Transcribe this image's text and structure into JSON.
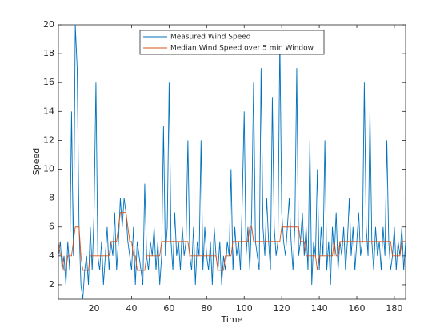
{
  "chart_data": {
    "type": "line",
    "xlabel": "Time",
    "ylabel": "Speed",
    "xlim": [
      1,
      186
    ],
    "ylim": [
      1,
      20
    ],
    "xticks": [
      20,
      40,
      60,
      80,
      100,
      120,
      140,
      160,
      180
    ],
    "yticks": [
      2,
      4,
      6,
      8,
      10,
      12,
      14,
      16,
      18,
      20
    ],
    "legend": "top",
    "x": [
      1,
      2,
      3,
      4,
      5,
      6,
      7,
      8,
      9,
      10,
      11,
      12,
      13,
      14,
      15,
      16,
      17,
      18,
      19,
      20,
      21,
      22,
      23,
      24,
      25,
      26,
      27,
      28,
      29,
      30,
      31,
      32,
      33,
      34,
      35,
      36,
      37,
      38,
      39,
      40,
      41,
      42,
      43,
      44,
      45,
      46,
      47,
      48,
      49,
      50,
      51,
      52,
      53,
      54,
      55,
      56,
      57,
      58,
      59,
      60,
      61,
      62,
      63,
      64,
      65,
      66,
      67,
      68,
      69,
      70,
      71,
      72,
      73,
      74,
      75,
      76,
      77,
      78,
      79,
      80,
      81,
      82,
      83,
      84,
      85,
      86,
      87,
      88,
      89,
      90,
      91,
      92,
      93,
      94,
      95,
      96,
      97,
      98,
      99,
      100,
      101,
      102,
      103,
      104,
      105,
      106,
      107,
      108,
      109,
      110,
      111,
      112,
      113,
      114,
      115,
      116,
      117,
      118,
      119,
      120,
      121,
      122,
      123,
      124,
      125,
      126,
      127,
      128,
      129,
      130,
      131,
      132,
      133,
      134,
      135,
      136,
      137,
      138,
      139,
      140,
      141,
      142,
      143,
      144,
      145,
      146,
      147,
      148,
      149,
      150,
      151,
      152,
      153,
      154,
      155,
      156,
      157,
      158,
      159,
      160,
      161,
      162,
      163,
      164,
      165,
      166,
      167,
      168,
      169,
      170,
      171,
      172,
      173,
      174,
      175,
      176,
      177,
      178,
      179,
      180,
      181,
      182,
      183,
      184,
      185,
      186
    ],
    "series": [
      {
        "name": "Measured Wind Speed",
        "color": "#0072bd",
        "values": [
          4,
          5,
          3,
          4,
          2,
          5,
          3,
          14,
          4,
          20,
          17,
          6,
          2,
          1,
          3,
          4,
          2,
          6,
          3,
          7,
          16,
          4,
          3,
          5,
          2,
          4,
          6,
          3,
          5,
          4,
          7,
          3,
          5,
          8,
          6,
          8,
          7,
          5,
          4,
          3,
          6,
          2,
          5,
          4,
          3,
          2,
          9,
          4,
          3,
          5,
          4,
          6,
          3,
          5,
          2,
          4,
          13,
          4,
          6,
          16,
          5,
          3,
          7,
          4,
          5,
          3,
          6,
          4,
          5,
          12,
          4,
          3,
          6,
          2,
          5,
          4,
          12,
          3,
          6,
          4,
          3,
          5,
          2,
          6,
          4,
          3,
          5,
          2,
          4,
          3,
          5,
          4,
          10,
          3,
          6,
          4,
          5,
          3,
          8,
          14,
          4,
          6,
          3,
          7,
          16,
          5,
          4,
          3,
          17,
          6,
          4,
          8,
          5,
          3,
          15,
          6,
          4,
          5,
          19,
          7,
          5,
          4,
          6,
          8,
          5,
          3,
          6,
          17,
          4,
          5,
          7,
          4,
          6,
          3,
          12,
          2,
          5,
          4,
          10,
          3,
          6,
          4,
          12,
          3,
          5,
          2,
          6,
          4,
          7,
          3,
          5,
          4,
          6,
          3,
          5,
          8,
          4,
          6,
          3,
          5,
          7,
          4,
          5,
          16,
          6,
          4,
          14,
          5,
          3,
          6,
          4,
          5,
          3,
          6,
          4,
          12,
          5,
          3,
          4,
          6,
          3,
          5,
          4,
          6,
          3,
          5
        ]
      },
      {
        "name": "Median Wind Speed over 5 min Window",
        "color": "#d95319",
        "values": [
          5,
          4,
          4,
          3,
          3,
          4,
          4,
          4,
          5,
          6,
          6,
          6,
          4,
          3,
          3,
          3,
          3,
          4,
          4,
          4,
          4,
          4,
          4,
          4,
          4,
          4,
          4,
          4,
          5,
          5,
          5,
          5,
          6,
          7,
          7,
          7,
          7,
          6,
          5,
          5,
          4,
          4,
          3,
          3,
          3,
          3,
          3,
          4,
          4,
          4,
          4,
          4,
          4,
          4,
          4,
          5,
          5,
          5,
          5,
          5,
          5,
          5,
          5,
          5,
          5,
          5,
          5,
          5,
          5,
          5,
          4,
          4,
          4,
          4,
          4,
          4,
          4,
          4,
          4,
          4,
          4,
          4,
          4,
          4,
          4,
          3,
          3,
          3,
          3,
          4,
          4,
          4,
          4,
          5,
          5,
          5,
          5,
          5,
          5,
          5,
          5,
          5,
          6,
          6,
          5,
          5,
          5,
          5,
          5,
          5,
          5,
          5,
          5,
          5,
          5,
          5,
          5,
          5,
          5,
          6,
          6,
          6,
          6,
          6,
          6,
          6,
          6,
          6,
          6,
          5,
          5,
          5,
          4,
          4,
          4,
          4,
          4,
          4,
          3,
          4,
          4,
          4,
          4,
          4,
          4,
          4,
          4,
          5,
          4,
          4,
          5,
          5,
          5,
          5,
          5,
          5,
          5,
          5,
          5,
          5,
          5,
          5,
          5,
          5,
          5,
          5,
          5,
          5,
          5,
          5,
          5,
          5,
          5,
          5,
          5,
          5,
          5,
          5,
          4,
          4,
          4,
          4,
          4,
          5,
          5,
          5
        ]
      }
    ]
  }
}
